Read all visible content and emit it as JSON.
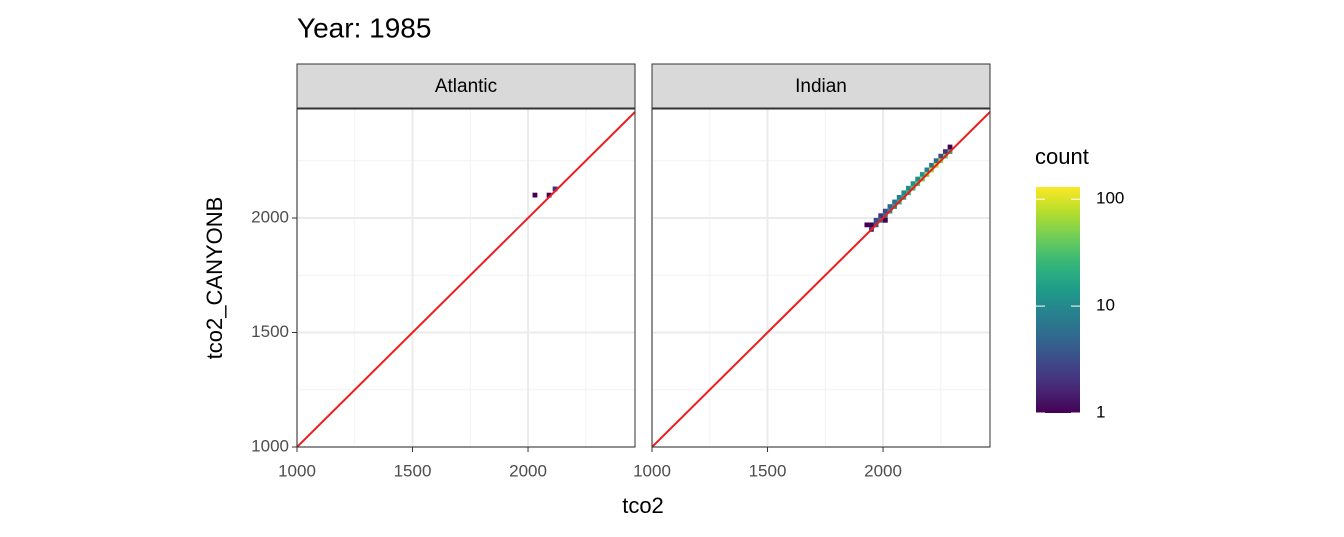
{
  "chart_data": {
    "type": "bin2d",
    "title": "Year: 1985",
    "x_label": "tco2",
    "y_label": "tco2_CANYONB",
    "xlim": [
      1000,
      2463
    ],
    "ylim": [
      1000,
      2476
    ],
    "xticks": [
      1000,
      1500,
      2000
    ],
    "yticks": [
      1000,
      1500,
      2000
    ],
    "grid": true,
    "reference_line": {
      "slope": 1,
      "intercept": 0,
      "color": "#ee1c1c"
    },
    "colorbar": {
      "title": "count",
      "lim": [
        1,
        130
      ],
      "ticks": [
        1,
        10,
        100
      ],
      "log": true,
      "colormap": "viridis"
    },
    "facets": [
      {
        "name": "Atlantic",
        "x": [
          2030,
          2091,
          2117
        ],
        "y": [
          2100,
          2100,
          2127
        ],
        "values": [
          1,
          1,
          2
        ]
      },
      {
        "name": "Indian",
        "x": [
          1930,
          1950,
          1950,
          1970,
          1970,
          1990,
          1990,
          2010,
          2010,
          2010,
          2030,
          2030,
          2050,
          2050,
          2070,
          2070,
          2090,
          2090,
          2110,
          2110,
          2130,
          2130,
          2150,
          2150,
          2170,
          2170,
          2190,
          2190,
          2210,
          2210,
          2230,
          2230,
          2250,
          2250,
          2270,
          2270,
          2290,
          2290
        ],
        "y": [
          1970,
          1970,
          1950,
          1990,
          1970,
          2010,
          1990,
          2030,
          2010,
          1990,
          2050,
          2030,
          2070,
          2050,
          2090,
          2070,
          2110,
          2090,
          2130,
          2110,
          2150,
          2130,
          2170,
          2150,
          2190,
          2170,
          2210,
          2190,
          2230,
          2210,
          2250,
          2230,
          2270,
          2250,
          2290,
          2270,
          2290,
          2310
        ],
        "values": [
          1,
          1,
          2,
          3,
          4,
          2,
          6,
          3,
          8,
          1,
          5,
          12,
          6,
          15,
          8,
          18,
          10,
          20,
          10,
          25,
          12,
          30,
          10,
          35,
          12,
          45,
          8,
          60,
          6,
          70,
          5,
          80,
          3,
          60,
          2,
          40,
          20,
          1
        ]
      }
    ]
  }
}
